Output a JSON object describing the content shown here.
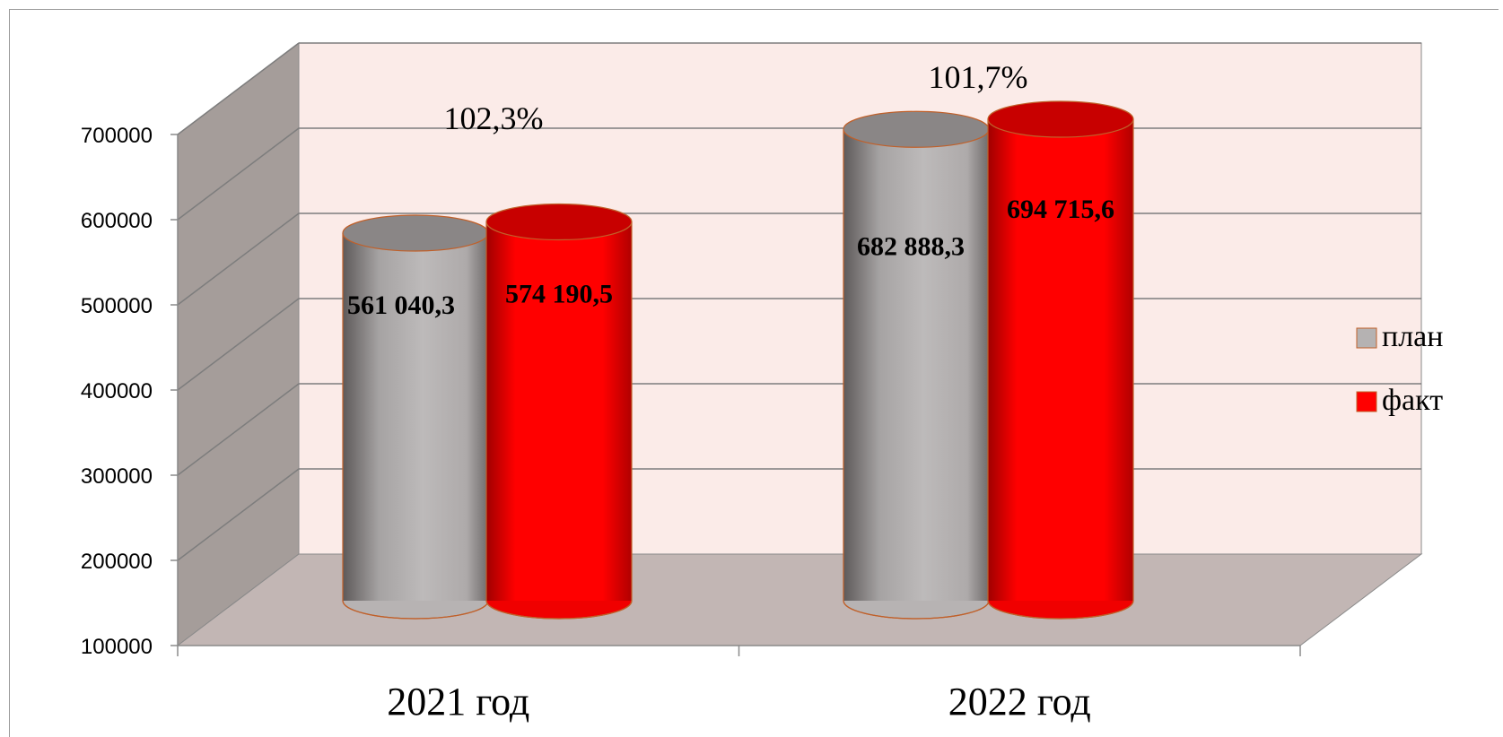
{
  "chart_data": {
    "type": "bar",
    "style": "3d-cylinder",
    "categories": [
      "2021 год",
      "2022 год"
    ],
    "series": [
      {
        "name": "план",
        "values": [
          561040.3,
          682888.3
        ],
        "labels": [
          "561 040,3",
          "682 888,3"
        ],
        "color": "#b5b2b2"
      },
      {
        "name": "факт",
        "values": [
          574190.5,
          694715.6
        ],
        "labels": [
          "574 190,5",
          "694 715,6"
        ],
        "color": "#ff0000"
      }
    ],
    "annotations": [
      "102,3%",
      "101,7%"
    ],
    "yticks": [
      "100000",
      "200000",
      "300000",
      "400000",
      "500000",
      "600000",
      "700000"
    ],
    "ylim": [
      100000,
      700000
    ],
    "grid": true,
    "legend_position": "right",
    "wall_color": "#fbebe8",
    "side_wall_color": "#a59d9a",
    "floor_color": "#c2b6b4"
  }
}
